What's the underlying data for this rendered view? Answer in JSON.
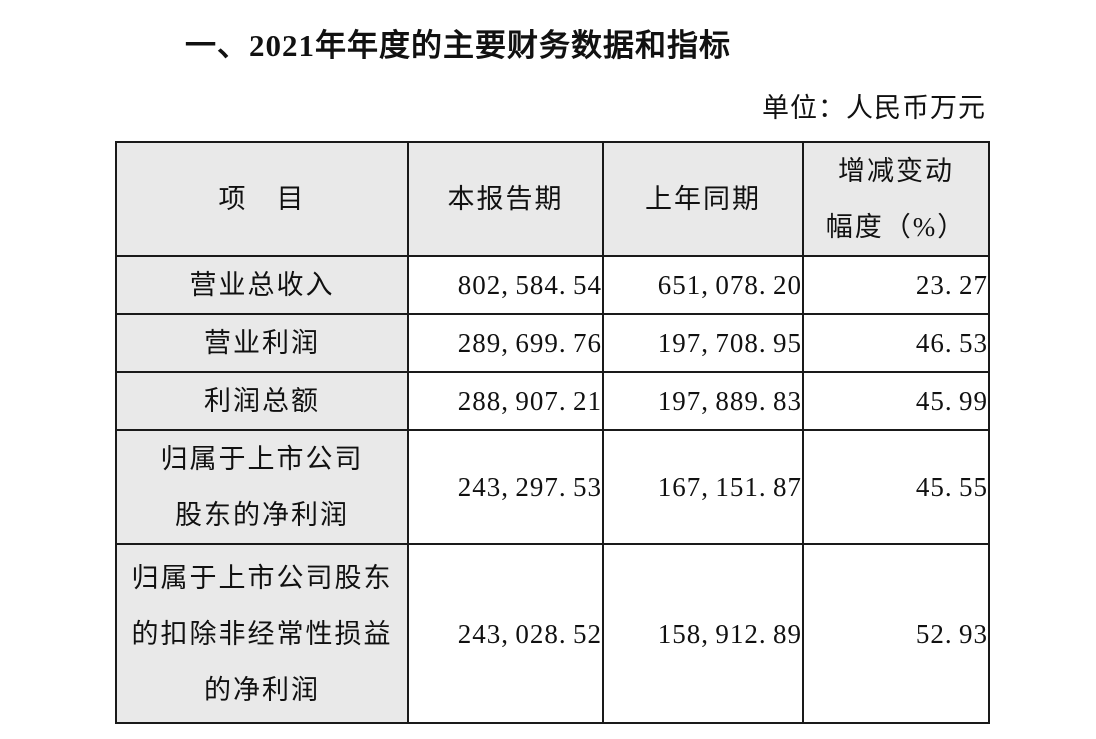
{
  "page": {
    "title": "一、2021年年度的主要财务数据和指标",
    "unit_note": "单位：人民币万元"
  },
  "table": {
    "header": {
      "item": "项　目",
      "current_period": "本报告期",
      "prior_period": "上年同期",
      "change_line1": "增减变动",
      "change_line2": "幅度（%）"
    },
    "rows": [
      {
        "item_lines": [
          "营业总收入"
        ],
        "current": "802,584.54",
        "prior": "651,078.20",
        "change": "23.27"
      },
      {
        "item_lines": [
          "营业利润"
        ],
        "current": "289,699.76",
        "prior": "197,708.95",
        "change": "46.53"
      },
      {
        "item_lines": [
          "利润总额"
        ],
        "current": "288,907.21",
        "prior": "197,889.83",
        "change": "45.99"
      },
      {
        "item_lines": [
          "归属于上市公司",
          "股东的净利润"
        ],
        "current": "243,297.53",
        "prior": "167,151.87",
        "change": "45.55"
      },
      {
        "item_lines": [
          "归属于上市公司股东",
          "的扣除非经常性损益",
          "的净利润"
        ],
        "current": "243,028.52",
        "prior": "158,912.89",
        "change": "52.93"
      }
    ],
    "colors": {
      "header_bg": "#e9e9e9",
      "border": "#1a1a1a",
      "text": "#111111",
      "page_bg": "#ffffff"
    }
  }
}
